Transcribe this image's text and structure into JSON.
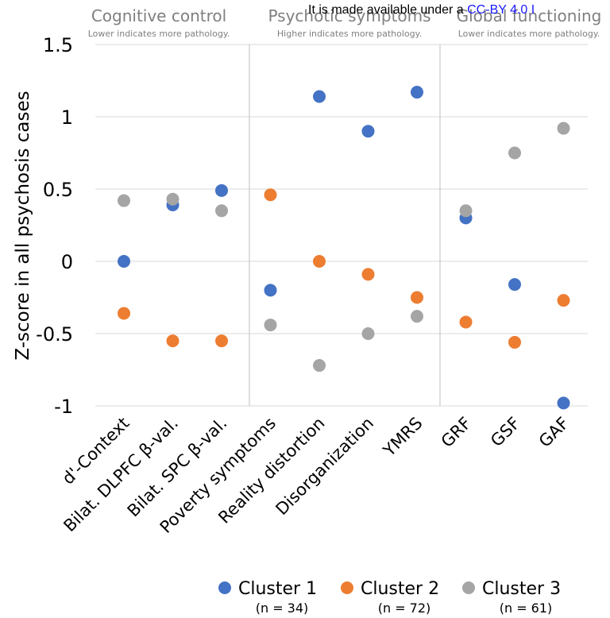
{
  "license_notice": {
    "text": "It is made available under a ",
    "link_text": "CC-BY 4.0 I"
  },
  "chart_data": {
    "type": "scatter",
    "ylabel": "Z-score in all psychosis cases",
    "ylim": [
      -1,
      1.5
    ],
    "yticks": [
      1.5,
      1,
      0.5,
      0,
      -0.5,
      -1
    ],
    "ytick_labels": [
      "1.5",
      "1",
      "0.5",
      "0",
      "-0.5",
      "-1"
    ],
    "grid": true,
    "categories": [
      "d'-Context",
      "Bilat. DLPFC β-val.",
      "Bilat. SPC β-val.",
      "Poverty symptoms",
      "Reality distortion",
      "Disorganization",
      "YMRS",
      "GRF",
      "GSF",
      "GAF"
    ],
    "sections": [
      {
        "title": "Cognitive control",
        "subtitle": "Lower indicates more pathology."
      },
      {
        "title": "Psychotic symptoms",
        "subtitle": "Higher indicates more pathology."
      },
      {
        "title": "Global functioning",
        "subtitle": "Lower indicates more pathology."
      }
    ],
    "series": [
      {
        "name": "Cluster 1",
        "n_label": "(n =  34)",
        "color": "#4472c4",
        "values": [
          0.0,
          0.39,
          0.49,
          -0.2,
          1.14,
          0.9,
          1.17,
          0.3,
          -0.16,
          -0.98
        ]
      },
      {
        "name": "Cluster 2",
        "n_label": "(n = 72)",
        "color": "#ed7d31",
        "values": [
          -0.36,
          -0.55,
          -0.55,
          0.46,
          0.0,
          -0.09,
          -0.25,
          -0.42,
          -0.56,
          -0.27
        ]
      },
      {
        "name": "Cluster 3",
        "n_label": "(n = 61)",
        "color": "#a5a5a5",
        "values": [
          0.42,
          0.43,
          0.35,
          -0.44,
          -0.72,
          -0.5,
          -0.38,
          0.35,
          0.75,
          0.92
        ]
      }
    ],
    "legend_position": "bottom"
  }
}
